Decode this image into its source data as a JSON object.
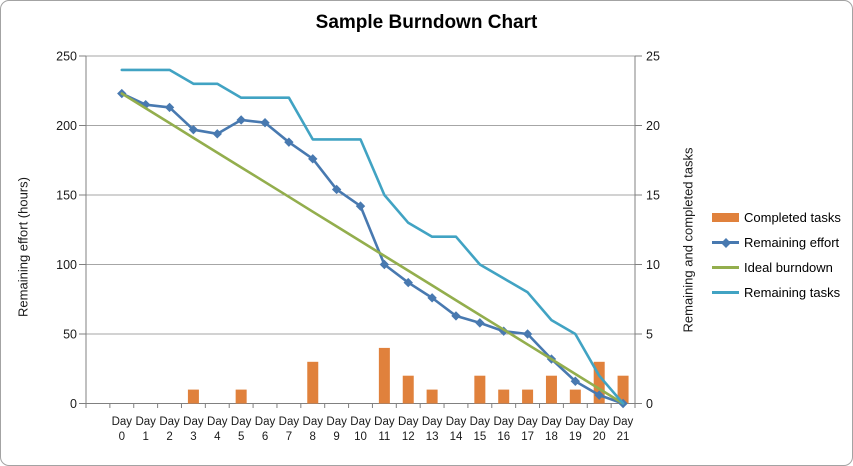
{
  "chart_data": {
    "type": "combo-bar-line",
    "title": "Sample Burndown Chart",
    "x_label_prefix": "Day",
    "categories": [
      "0",
      "1",
      "2",
      "3",
      "4",
      "5",
      "6",
      "7",
      "8",
      "9",
      "10",
      "11",
      "12",
      "13",
      "14",
      "15",
      "16",
      "17",
      "18",
      "19",
      "20",
      "21"
    ],
    "left_axis": {
      "title": "Remaining effort (hours)",
      "min": 0,
      "max": 250,
      "ticks": [
        0,
        50,
        100,
        150,
        200,
        250
      ]
    },
    "right_axis": {
      "title": "Remaining and completed tasks",
      "min": 0,
      "max": 25,
      "ticks": [
        0,
        5,
        10,
        15,
        20,
        25
      ]
    },
    "legend_position": "right",
    "grid": true,
    "colors": {
      "bar_orange": "#E0813C",
      "effort_blue": "#4879B0",
      "ideal_green": "#93AE4D",
      "tasks_teal": "#41A3C3",
      "gridline": "#A6A6A6",
      "axis_line": "#808080"
    },
    "series": [
      {
        "name": "Completed tasks",
        "type": "bar",
        "axis": "right",
        "color": "#E0813C",
        "values": [
          null,
          null,
          null,
          1,
          null,
          1,
          null,
          null,
          3,
          null,
          null,
          4,
          2,
          1,
          null,
          2,
          1,
          1,
          2,
          1,
          3,
          2
        ]
      },
      {
        "name": "Remaining effort",
        "type": "line",
        "marker": "diamond",
        "axis": "left",
        "color": "#4879B0",
        "values": [
          223,
          215,
          213,
          197,
          194,
          204,
          202,
          188,
          176,
          154,
          142,
          100,
          87,
          76,
          63,
          58,
          52,
          50,
          32,
          16,
          6,
          0
        ]
      },
      {
        "name": "Ideal burndown",
        "type": "line",
        "axis": "left",
        "color": "#93AE4D",
        "values": [
          223,
          212.4,
          201.8,
          191.1,
          180.5,
          169.9,
          159.3,
          148.7,
          138.0,
          127.4,
          116.8,
          106.2,
          95.6,
          85.0,
          74.3,
          63.7,
          53.1,
          42.5,
          31.9,
          21.2,
          10.6,
          0
        ]
      },
      {
        "name": "Remaining tasks",
        "type": "line",
        "axis": "right",
        "color": "#41A3C3",
        "values": [
          24,
          24,
          24,
          23,
          23,
          22,
          22,
          22,
          19,
          19,
          19,
          15,
          13,
          12,
          12,
          10,
          9,
          8,
          6,
          5,
          2,
          0
        ]
      }
    ]
  }
}
